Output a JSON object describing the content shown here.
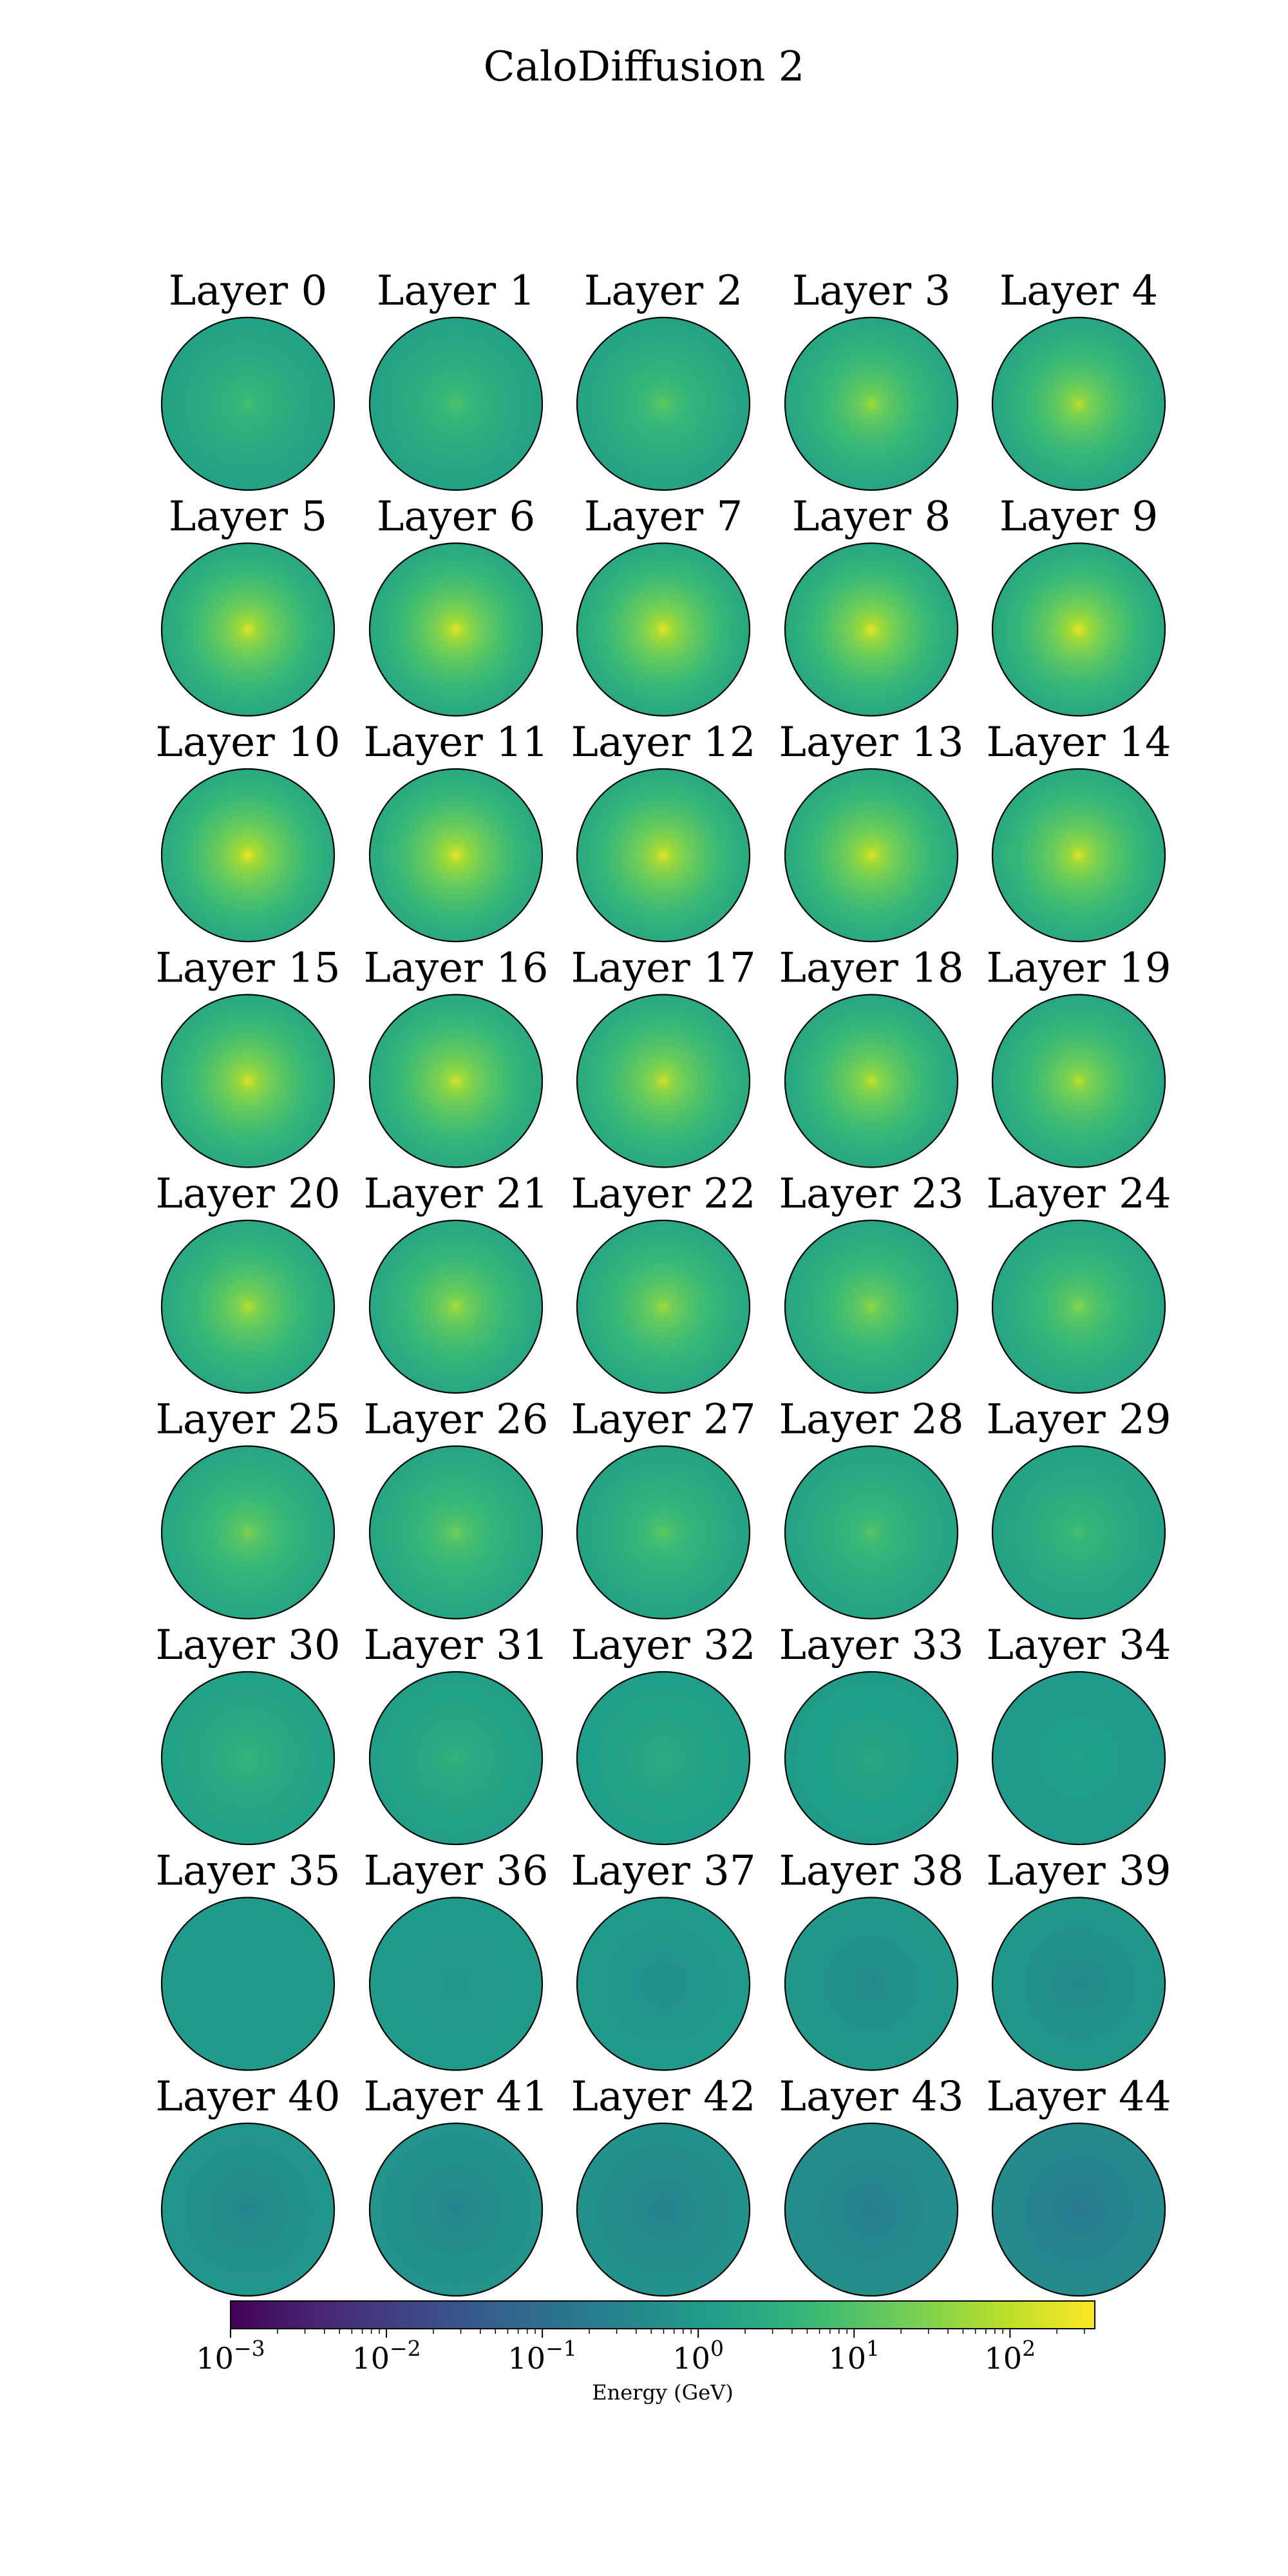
{
  "figure": {
    "title": "CaloDiffusion 2"
  },
  "colors": {
    "viridis": [
      "#440154",
      "#482878",
      "#3e4989",
      "#31688e",
      "#26828e",
      "#1f9e89",
      "#35b779",
      "#6ece58",
      "#b5de2b",
      "#fde725"
    ],
    "border": "#000000"
  },
  "chart_data": {
    "type": "heatmap",
    "title": "CaloDiffusion 2",
    "grid": "polar, per-layer radial energy profile",
    "color_scale": {
      "type": "log",
      "range": [
        0.001,
        350
      ],
      "label": "Energy (GeV)",
      "ticks": [
        {
          "value": 0.001,
          "base": "10",
          "exp": "−3"
        },
        {
          "value": 0.01,
          "base": "10",
          "exp": "−2"
        },
        {
          "value": 0.1,
          "base": "10",
          "exp": "−1"
        },
        {
          "value": 1,
          "base": "10",
          "exp": "0"
        },
        {
          "value": 10,
          "base": "10",
          "exp": "1"
        },
        {
          "value": 100,
          "base": "10",
          "exp": "2"
        }
      ]
    },
    "layers": [
      {
        "label": "Layer 0",
        "center": 8,
        "edge": 1.5
      },
      {
        "label": "Layer 1",
        "center": 10,
        "edge": 1.5
      },
      {
        "label": "Layer 2",
        "center": 15,
        "edge": 1.6
      },
      {
        "label": "Layer 3",
        "center": 60,
        "edge": 1.8
      },
      {
        "label": "Layer 4",
        "center": 100,
        "edge": 1.8
      },
      {
        "label": "Layer 5",
        "center": 200,
        "edge": 2
      },
      {
        "label": "Layer 6",
        "center": 220,
        "edge": 2
      },
      {
        "label": "Layer 7",
        "center": 230,
        "edge": 2
      },
      {
        "label": "Layer 8",
        "center": 230,
        "edge": 2
      },
      {
        "label": "Layer 9",
        "center": 250,
        "edge": 2
      },
      {
        "label": "Layer 10",
        "center": 250,
        "edge": 2.2
      },
      {
        "label": "Layer 11",
        "center": 240,
        "edge": 2.2
      },
      {
        "label": "Layer 12",
        "center": 220,
        "edge": 2.2
      },
      {
        "label": "Layer 13",
        "center": 200,
        "edge": 2.2
      },
      {
        "label": "Layer 14",
        "center": 180,
        "edge": 2.2
      },
      {
        "label": "Layer 15",
        "center": 180,
        "edge": 2.2
      },
      {
        "label": "Layer 16",
        "center": 160,
        "edge": 2.2
      },
      {
        "label": "Layer 17",
        "center": 140,
        "edge": 2.2
      },
      {
        "label": "Layer 18",
        "center": 120,
        "edge": 2
      },
      {
        "label": "Layer 19",
        "center": 100,
        "edge": 2
      },
      {
        "label": "Layer 20",
        "center": 90,
        "edge": 2
      },
      {
        "label": "Layer 21",
        "center": 70,
        "edge": 2
      },
      {
        "label": "Layer 22",
        "center": 60,
        "edge": 2
      },
      {
        "label": "Layer 23",
        "center": 45,
        "edge": 1.8
      },
      {
        "label": "Layer 24",
        "center": 35,
        "edge": 1.8
      },
      {
        "label": "Layer 25",
        "center": 30,
        "edge": 1.8
      },
      {
        "label": "Layer 26",
        "center": 22,
        "edge": 1.8
      },
      {
        "label": "Layer 27",
        "center": 15,
        "edge": 1.6
      },
      {
        "label": "Layer 28",
        "center": 12,
        "edge": 1.6
      },
      {
        "label": "Layer 29",
        "center": 8,
        "edge": 1.5
      },
      {
        "label": "Layer 30",
        "center": 5,
        "edge": 1.4
      },
      {
        "label": "Layer 31",
        "center": 4,
        "edge": 1.3
      },
      {
        "label": "Layer 32",
        "center": 3,
        "edge": 1.2
      },
      {
        "label": "Layer 33",
        "center": 2.2,
        "edge": 1.1
      },
      {
        "label": "Layer 34",
        "center": 1.5,
        "edge": 1.0
      },
      {
        "label": "Layer 35",
        "center": 1.0,
        "edge": 1.0
      },
      {
        "label": "Layer 36",
        "center": 0.8,
        "edge": 1.0
      },
      {
        "label": "Layer 37",
        "center": 0.5,
        "edge": 1.0
      },
      {
        "label": "Layer 38",
        "center": 0.4,
        "edge": 0.9
      },
      {
        "label": "Layer 39",
        "center": 0.35,
        "edge": 0.85
      },
      {
        "label": "Layer 40",
        "center": 0.3,
        "edge": 0.8
      },
      {
        "label": "Layer 41",
        "center": 0.28,
        "edge": 0.75
      },
      {
        "label": "Layer 42",
        "center": 0.25,
        "edge": 0.65
      },
      {
        "label": "Layer 43",
        "center": 0.2,
        "edge": 0.55
      },
      {
        "label": "Layer 44",
        "center": 0.15,
        "edge": 0.45
      }
    ]
  }
}
